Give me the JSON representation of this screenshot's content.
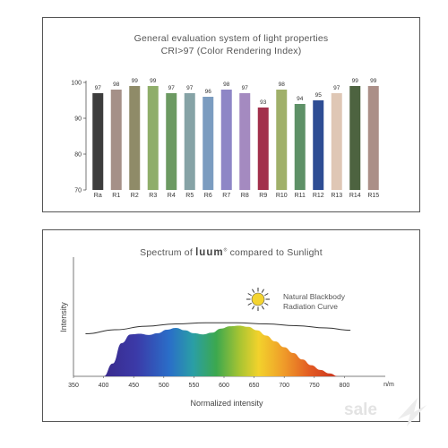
{
  "chart_data": [
    {
      "type": "bar",
      "title": "General evaluation system of light properties",
      "subtitle": "CRI>97 (Color Rendering Index)",
      "categories": [
        "Ra",
        "R1",
        "R2",
        "R3",
        "R4",
        "R5",
        "R6",
        "R7",
        "R8",
        "R9",
        "R10",
        "R11",
        "R12",
        "R13",
        "R14",
        "R15"
      ],
      "values": [
        97,
        98,
        99,
        99,
        97,
        97,
        96,
        98,
        97,
        93,
        98,
        94,
        95,
        97,
        99,
        99
      ],
      "colors": [
        "#3d3d3d",
        "#a59088",
        "#8f8b68",
        "#8fae6a",
        "#6c9a62",
        "#86a3a6",
        "#7b9cc0",
        "#8e86c6",
        "#a48ac0",
        "#a2304c",
        "#a0b06a",
        "#5e9167",
        "#2e4d94",
        "#dfc7b5",
        "#4d6340",
        "#ab8f88"
      ],
      "yticks": [
        70,
        80,
        90,
        100
      ],
      "ylim": [
        70,
        100
      ],
      "xlabel": "",
      "ylabel": ""
    },
    {
      "type": "area",
      "title_prefix": "Spectrum of",
      "title_brand": "luum",
      "title_suffix": "compared to Sunlight",
      "xlabel": "Normalized intensity",
      "ylabel": "Intensity",
      "x_unit": "n/m",
      "xticks": [
        350,
        400,
        450,
        500,
        550,
        600,
        650,
        700,
        750,
        800
      ],
      "xlim": [
        350,
        850
      ],
      "ylim": [
        0,
        1
      ],
      "series": [
        {
          "x": [
            400,
            415,
            430,
            445,
            460,
            475,
            490,
            505,
            520,
            535,
            550,
            565,
            580,
            595,
            610,
            625,
            640,
            655,
            670,
            685,
            700,
            715,
            730,
            745,
            760,
            775,
            790
          ],
          "values": [
            0.0,
            0.22,
            0.57,
            0.72,
            0.73,
            0.71,
            0.74,
            0.8,
            0.83,
            0.79,
            0.74,
            0.72,
            0.75,
            0.82,
            0.86,
            0.87,
            0.85,
            0.79,
            0.7,
            0.6,
            0.5,
            0.4,
            0.29,
            0.19,
            0.11,
            0.05,
            0.0
          ]
        },
        {
          "x": [
            370,
            420,
            470,
            520,
            570,
            620,
            670,
            720,
            770,
            810
          ],
          "values": [
            0.73,
            0.8,
            0.86,
            0.9,
            0.92,
            0.92,
            0.9,
            0.87,
            0.83,
            0.79
          ]
        }
      ],
      "annotation": [
        "Natural Blackbody",
        "Radiation Curve"
      ],
      "annotation_icon": "sun-icon",
      "grid": false
    }
  ],
  "watermark": "sale"
}
